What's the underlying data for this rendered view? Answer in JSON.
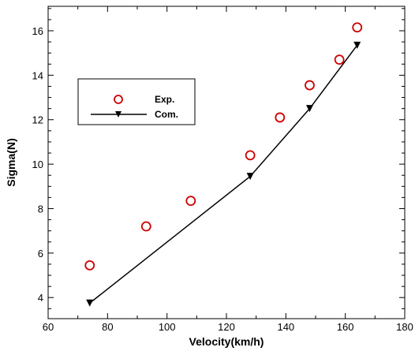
{
  "chart_data": {
    "type": "scatter",
    "xlabel": "Velocity(km/h)",
    "ylabel": "Sigma(N)",
    "xlim": [
      60,
      180
    ],
    "ylim": [
      3.05,
      17.1
    ],
    "xticks": [
      "60",
      "80",
      "100",
      "120",
      "140",
      "160",
      "180"
    ],
    "yticks": [
      "4",
      "6",
      "8",
      "10",
      "12",
      "14",
      "16"
    ],
    "grid": false,
    "legend_position": "upper-left",
    "series": [
      {
        "name": "Exp.",
        "style": "open-circle-markers",
        "color": "#cc0000",
        "x": [
          74,
          93,
          108,
          128,
          138,
          148,
          158,
          164
        ],
        "y": [
          5.45,
          7.2,
          8.35,
          10.4,
          12.1,
          13.55,
          14.7,
          16.15
        ]
      },
      {
        "name": "Com.",
        "style": "line-with-filled-down-triangles",
        "color": "#000000",
        "x": [
          74,
          128,
          148,
          164
        ],
        "y": [
          3.75,
          9.45,
          12.5,
          15.35
        ]
      }
    ]
  }
}
